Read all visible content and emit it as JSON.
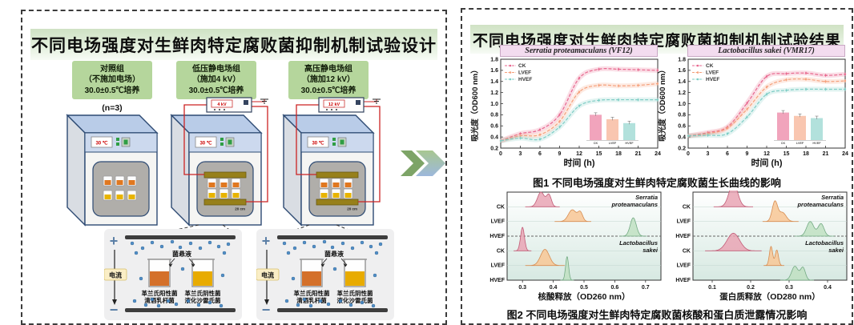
{
  "left_panel": {
    "title": "不同电场强度对生鲜肉特定腐败菌抑制机制试验设计",
    "groups": [
      {
        "line1": "对照组",
        "line2": "（不施加电场）",
        "line3": "30.0±0.5℃培养",
        "replicate": "(n=3)",
        "voltage": "",
        "temp": "30 ℃",
        "gap": ""
      },
      {
        "line1": "低压静电场组",
        "line2": "（施加4 kV）",
        "line3": "30.0±0.5℃培养",
        "replicate": "(n=3)",
        "voltage": "4 kV",
        "temp": "30 ℃",
        "gap": "20 cm"
      },
      {
        "line1": "高压静电场组",
        "line2": "（施加12 kV）",
        "line3": "30.0±0.5℃培养",
        "replicate": "(n=3)",
        "voltage": "12 kV",
        "temp": "30 ℃",
        "gap": "20 cm"
      }
    ],
    "field_diagram": {
      "plus": "+",
      "minus": "−",
      "current": "电流",
      "suspension": "菌悬液",
      "beaker1_lines": [
        "革兰氏阳性菌",
        "清酒乳杆菌"
      ],
      "beaker2_lines": [
        "革兰氏阴性菌",
        "液化沙雷氏菌"
      ]
    }
  },
  "right_panel": {
    "title": "不同电场强度对生鲜肉特定腐败菌抑制机制试验结果",
    "fig1_caption": "图1  不同电场强度对生鲜肉特定腐败菌生长曲线的影响",
    "fig2_caption": "图2  不同电场强度对生鲜肉特定腐败菌核酸和蛋白质泄露情况影响"
  },
  "palette": {
    "line": {
      "CK": "#e8688f",
      "LVEF": "#f5a07b",
      "HVEF": "#7ecdc5"
    },
    "fill": {
      "CK": "#e9a4b4",
      "LVEF": "#f8c795",
      "HVEF": "#bfe0c2"
    },
    "stroke": {
      "CK": "#c25c77",
      "LVEF": "#d78d52",
      "HVEF": "#74ab84"
    },
    "wire": "#cc2222",
    "accent_green": "#7da467",
    "accent_blue": "#9db8dc"
  },
  "chart_data": [
    {
      "type": "line",
      "title": "Serratia proteamaculans (VF12)",
      "xlabel": "时间 (h)",
      "ylabel": "吸光度（OD600 nm）",
      "x": [
        0,
        3,
        6,
        9,
        12,
        15,
        18,
        21,
        24
      ],
      "xlim": [
        0,
        24
      ],
      "ylim": [
        0.2,
        1.8
      ],
      "ytick_step": 0.2,
      "legend_position": "top-left",
      "grid": false,
      "series": [
        {
          "name": "CK",
          "values": [
            0.33,
            0.46,
            0.53,
            0.8,
            1.46,
            1.62,
            1.62,
            1.61,
            1.6
          ]
        },
        {
          "name": "LVEF",
          "values": [
            0.33,
            0.42,
            0.44,
            0.68,
            1.21,
            1.33,
            1.32,
            1.33,
            1.36
          ]
        },
        {
          "name": "HVEF",
          "values": [
            0.33,
            0.38,
            0.36,
            0.58,
            0.96,
            1.06,
            1.07,
            1.07,
            1.07
          ]
        }
      ],
      "inset_bar": {
        "categories": [
          "CK",
          "LVEF",
          "HVEF"
        ],
        "values": [
          0.8,
          0.72,
          0.65
        ]
      }
    },
    {
      "type": "line",
      "title": "Lactobacillus sakei (VMR17)",
      "xlabel": "时间 (h)",
      "ylabel": "吸光度（OD600 nm）",
      "x": [
        0,
        3,
        6,
        9,
        12,
        15,
        18,
        21,
        24
      ],
      "xlim": [
        0,
        24
      ],
      "ylim": [
        0.2,
        1.8
      ],
      "ytick_step": 0.2,
      "legend_position": "top-left",
      "grid": false,
      "series": [
        {
          "name": "CK",
          "values": [
            0.42,
            0.48,
            0.58,
            1.01,
            1.49,
            1.54,
            1.55,
            1.51,
            1.53
          ]
        },
        {
          "name": "LVEF",
          "values": [
            0.42,
            0.46,
            0.56,
            0.9,
            1.3,
            1.43,
            1.44,
            1.4,
            1.41
          ]
        },
        {
          "name": "HVEF",
          "values": [
            0.42,
            0.43,
            0.46,
            0.76,
            1.17,
            1.24,
            1.26,
            1.26,
            1.26
          ]
        }
      ],
      "inset_bar": {
        "categories": [
          "CK",
          "LVEF",
          "HVEF"
        ],
        "values": [
          0.84,
          0.78,
          0.74
        ]
      }
    },
    {
      "type": "ridgeline",
      "xlabel": "核酸释放（OD260 nm）",
      "xlim": [
        0.25,
        0.75
      ],
      "xticks": [
        0.3,
        0.4,
        0.5,
        0.6,
        0.7
      ],
      "rows": [
        "CK",
        "LVEF",
        "HVEF",
        "CK",
        "LVEF",
        "HVEF"
      ],
      "groups": [
        "Serratia proteamaculans",
        "Lactobacillus sakei"
      ],
      "peaks": [
        {
          "row": 0,
          "color": "CK",
          "components": [
            {
              "c": 0.36,
              "w": 0.016,
              "h": 1.0
            },
            {
              "c": 0.386,
              "w": 0.011,
              "h": 0.8
            }
          ]
        },
        {
          "row": 1,
          "color": "LVEF",
          "components": [
            {
              "c": 0.462,
              "w": 0.018,
              "h": 0.8
            },
            {
              "c": 0.488,
              "w": 0.011,
              "h": 0.6
            }
          ]
        },
        {
          "row": 2,
          "color": "HVEF",
          "components": [
            {
              "c": 0.66,
              "w": 0.014,
              "h": 1.25
            }
          ]
        },
        {
          "row": 3,
          "color": "CK",
          "components": [
            {
              "c": 0.3,
              "w": 0.009,
              "h": 1.6
            }
          ]
        },
        {
          "row": 4,
          "color": "LVEF",
          "components": [
            {
              "c": 0.373,
              "w": 0.02,
              "h": 1.1
            }
          ]
        },
        {
          "row": 5,
          "color": "HVEF",
          "components": [
            {
              "c": 0.445,
              "w": 0.007,
              "h": 1.6
            }
          ]
        }
      ]
    },
    {
      "type": "ridgeline",
      "xlabel": "蛋白质释放（OD280 nm）",
      "xlim": [
        0.05,
        0.45
      ],
      "xticks": [
        0.1,
        0.2,
        0.3,
        0.4
      ],
      "rows": [
        "CK",
        "LVEF",
        "HVEF",
        "CK",
        "LVEF",
        "HVEF"
      ],
      "groups": [
        "Serratia proteamaculans",
        "Lactobacillus sakei"
      ],
      "peaks": [
        {
          "row": 0,
          "color": "CK",
          "components": [
            {
              "c": 0.155,
              "w": 0.016,
              "h": 1.6
            }
          ]
        },
        {
          "row": 1,
          "color": "LVEF",
          "components": [
            {
              "c": 0.263,
              "w": 0.01,
              "h": 1.35
            },
            {
              "c": 0.283,
              "w": 0.013,
              "h": 0.6
            }
          ]
        },
        {
          "row": 2,
          "color": "HVEF",
          "components": [
            {
              "c": 0.355,
              "w": 0.013,
              "h": 1.0
            },
            {
              "c": 0.383,
              "w": 0.011,
              "h": 0.85
            }
          ]
        },
        {
          "row": 3,
          "color": "CK",
          "components": [
            {
              "c": 0.155,
              "w": 0.023,
              "h": 1.2
            }
          ]
        },
        {
          "row": 4,
          "color": "LVEF",
          "components": [
            {
              "c": 0.253,
              "w": 0.006,
              "h": 1.3
            },
            {
              "c": 0.268,
              "w": 0.006,
              "h": 1.05
            }
          ]
        },
        {
          "row": 5,
          "color": "HVEF",
          "components": [
            {
              "c": 0.315,
              "w": 0.012,
              "h": 0.95
            },
            {
              "c": 0.336,
              "w": 0.009,
              "h": 0.85
            }
          ]
        }
      ]
    }
  ]
}
